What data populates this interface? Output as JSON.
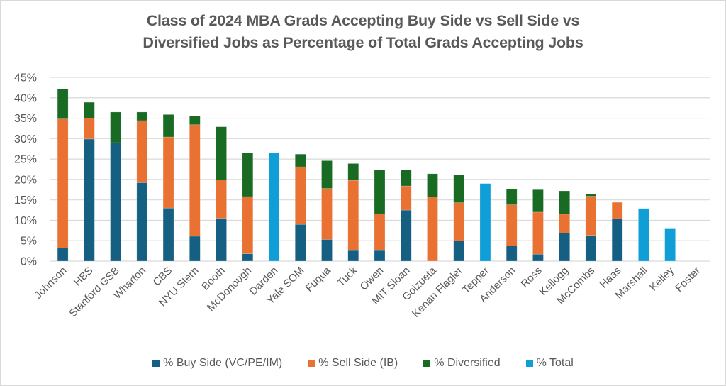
{
  "chart_data": {
    "type": "bar",
    "stacked": true,
    "title": "Class of 2024 MBA Grads Accepting Buy Side vs Sell Side vs Diversified Jobs as Percentage of Total Grads Accepting Jobs",
    "title_lines": [
      "Class of 2024 MBA Grads Accepting Buy Side vs Sell Side vs",
      "Diversified Jobs as Percentage of Total Grads Accepting Jobs"
    ],
    "xlabel": "",
    "ylabel": "",
    "ylim": [
      0,
      45
    ],
    "yticks": [
      0,
      5,
      10,
      15,
      20,
      25,
      30,
      35,
      40,
      45
    ],
    "ytick_labels": [
      "0%",
      "5%",
      "10%",
      "15%",
      "20%",
      "25%",
      "30%",
      "35%",
      "40%",
      "45%"
    ],
    "grid": true,
    "legend_position": "bottom",
    "categories": [
      "Johnson",
      "HBS",
      "Stanford GSB",
      "Wharton",
      "CBS",
      "NYU Stern",
      "Booth",
      "McDonough",
      "Darden",
      "Yale SOM",
      "Fuqua",
      "Tuck",
      "Owen",
      "MIT Sloan",
      "Goizueta",
      "Kenan Flagler",
      "Tepper",
      "Anderson",
      "Ross",
      "Kellogg",
      "McCombs",
      "Haas",
      "Marshall",
      "Kelley",
      "Foster"
    ],
    "series": [
      {
        "name": "% Buy Side (VC/PE/IM)",
        "color": "#156082",
        "values": [
          3.2,
          29.9,
          29.0,
          19.2,
          13.0,
          6.1,
          10.5,
          1.8,
          0,
          9.0,
          5.3,
          2.6,
          2.6,
          12.5,
          0,
          5.0,
          0,
          3.7,
          1.7,
          6.9,
          6.3,
          10.4,
          0,
          0,
          0
        ]
      },
      {
        "name": "% Sell Side (IB)",
        "color": "#E97132",
        "values": [
          31.6,
          5.1,
          0,
          15.2,
          17.4,
          27.3,
          9.4,
          14.0,
          0,
          14.1,
          12.5,
          17.2,
          9.0,
          5.9,
          15.7,
          9.3,
          0,
          10.1,
          10.3,
          4.6,
          9.6,
          4.0,
          0,
          0,
          0
        ]
      },
      {
        "name": "% Diversified",
        "color": "#196B24",
        "values": [
          7.3,
          3.9,
          7.5,
          2.1,
          5.5,
          2.1,
          13.0,
          10.7,
          0,
          3.1,
          6.8,
          4.1,
          10.8,
          3.9,
          5.7,
          6.8,
          0,
          3.9,
          5.5,
          5.7,
          0.6,
          0,
          0,
          0,
          0
        ]
      },
      {
        "name": "% Total",
        "color": "#0F9ED5",
        "values": [
          0,
          0,
          0,
          0,
          0,
          0,
          0,
          0,
          26.5,
          0,
          0,
          0,
          0,
          0,
          0,
          0,
          19.0,
          0,
          0,
          0,
          0,
          0,
          12.9,
          7.9,
          0
        ]
      }
    ]
  },
  "colors": {
    "gridline": "#d9d9d9",
    "text": "#595959",
    "frame": "#d9d9d9"
  }
}
